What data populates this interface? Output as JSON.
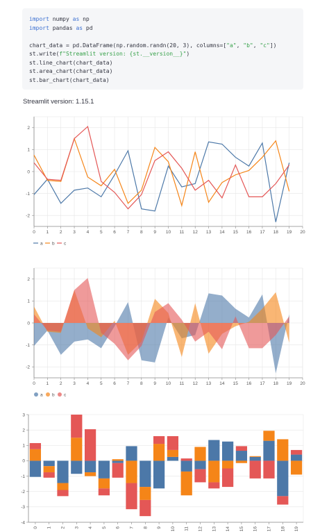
{
  "code": {
    "lines": [
      [
        {
          "t": "import",
          "c": "kw"
        },
        {
          "t": " numpy ",
          "c": ""
        },
        {
          "t": "as",
          "c": "kw"
        },
        {
          "t": " np",
          "c": ""
        }
      ],
      [
        {
          "t": "import",
          "c": "kw"
        },
        {
          "t": " pandas ",
          "c": ""
        },
        {
          "t": "as",
          "c": "kw"
        },
        {
          "t": " pd",
          "c": ""
        }
      ],
      [],
      [
        {
          "t": "chart_data = pd.DataFrame(np.random.randn(20, 3), columns=[",
          "c": ""
        },
        {
          "t": "\"a\"",
          "c": "str"
        },
        {
          "t": ", ",
          "c": ""
        },
        {
          "t": "\"b\"",
          "c": "str"
        },
        {
          "t": ", ",
          "c": ""
        },
        {
          "t": "\"c\"",
          "c": "str"
        },
        {
          "t": "])",
          "c": ""
        }
      ],
      [
        {
          "t": "st.write(",
          "c": ""
        },
        {
          "t": "f\"Streamlit version: {st.__version__}\"",
          "c": "str"
        },
        {
          "t": ")",
          "c": ""
        }
      ],
      [
        {
          "t": "st.line_chart(chart_data)",
          "c": ""
        }
      ],
      [
        {
          "t": "st.area_chart(chart_data)",
          "c": ""
        }
      ],
      [
        {
          "t": "st.bar_chart(chart_data)",
          "c": ""
        }
      ]
    ]
  },
  "version_text": "Streamlit version: 1.15.1",
  "colors": {
    "a": "#4c78a8",
    "b": "#f58518",
    "c": "#e45756",
    "grid": "#e6e6e6",
    "axis": "#888888"
  },
  "chart_data": [
    {
      "type": "line",
      "x": [
        0,
        1,
        2,
        3,
        4,
        5,
        6,
        7,
        8,
        9,
        10,
        11,
        12,
        13,
        14,
        15,
        16,
        17,
        18,
        19
      ],
      "xlim": [
        0,
        20
      ],
      "ylim": [
        -2.5,
        2.5
      ],
      "yticks": [
        -2,
        -1,
        0,
        1,
        2
      ],
      "xticks": [
        0,
        1,
        2,
        3,
        4,
        5,
        6,
        7,
        8,
        9,
        10,
        11,
        12,
        13,
        14,
        15,
        16,
        17,
        18,
        19,
        20
      ],
      "legend": "bottom-left",
      "series": [
        {
          "name": "a",
          "values": [
            -1.05,
            -0.35,
            -1.45,
            -0.85,
            -0.75,
            -1.15,
            -0.15,
            0.95,
            -1.7,
            -1.8,
            0.25,
            -0.7,
            -0.55,
            1.35,
            1.25,
            0.65,
            0.25,
            1.3,
            -2.3,
            0.4
          ]
        },
        {
          "name": "b",
          "values": [
            0.75,
            -0.4,
            -0.45,
            1.5,
            -0.25,
            -0.65,
            0.1,
            -1.45,
            -0.85,
            1.1,
            0.45,
            -1.55,
            0.9,
            -1.4,
            -0.5,
            -0.15,
            0.05,
            0.65,
            1.4,
            -0.9
          ]
        },
        {
          "name": "c",
          "values": [
            0.4,
            -0.35,
            -0.4,
            1.5,
            2.05,
            -0.45,
            -0.95,
            -1.7,
            -1.05,
            0.5,
            0.9,
            0.15,
            -0.85,
            -0.4,
            -1.2,
            0.3,
            -1.15,
            -1.15,
            -0.55,
            0.3
          ]
        }
      ]
    },
    {
      "type": "area",
      "x": [
        0,
        1,
        2,
        3,
        4,
        5,
        6,
        7,
        8,
        9,
        10,
        11,
        12,
        13,
        14,
        15,
        16,
        17,
        18,
        19
      ],
      "xlim": [
        0,
        20
      ],
      "ylim": [
        -2.5,
        2.5
      ],
      "yticks": [
        -2,
        -1,
        0,
        1,
        2
      ],
      "xticks": [
        0,
        1,
        2,
        3,
        4,
        5,
        6,
        7,
        8,
        9,
        10,
        11,
        12,
        13,
        14,
        15,
        16,
        17,
        18,
        19,
        20
      ],
      "legend": "bottom-left",
      "series": [
        {
          "name": "a",
          "values": [
            -1.05,
            -0.35,
            -1.45,
            -0.85,
            -0.75,
            -1.15,
            -0.15,
            0.95,
            -1.7,
            -1.8,
            0.25,
            -0.7,
            -0.55,
            1.35,
            1.25,
            0.65,
            0.25,
            1.3,
            -2.3,
            0.4
          ]
        },
        {
          "name": "b",
          "values": [
            0.75,
            -0.4,
            -0.45,
            1.5,
            -0.25,
            -0.65,
            0.1,
            -1.45,
            -0.85,
            1.1,
            0.45,
            -1.55,
            0.9,
            -1.4,
            -0.5,
            -0.15,
            0.05,
            0.65,
            1.4,
            -0.9
          ]
        },
        {
          "name": "c",
          "values": [
            0.4,
            -0.35,
            -0.4,
            1.5,
            2.05,
            -0.45,
            -0.95,
            -1.7,
            -1.05,
            0.5,
            0.9,
            0.15,
            -0.85,
            -0.4,
            -1.2,
            0.3,
            -1.15,
            -1.15,
            -0.55,
            0.3
          ]
        }
      ]
    },
    {
      "type": "bar",
      "stacked": true,
      "categories": [
        "0",
        "1",
        "2",
        "3",
        "4",
        "5",
        "6",
        "7",
        "8",
        "9",
        "10",
        "11",
        "12",
        "13",
        "14",
        "15",
        "16",
        "17",
        "18",
        "19"
      ],
      "ylim": [
        -4,
        3
      ],
      "yticks": [
        -4,
        -3,
        -2,
        -1,
        0,
        1,
        2,
        3
      ],
      "series": [
        {
          "name": "a",
          "values": [
            -1.05,
            -0.35,
            -1.45,
            -0.85,
            -0.75,
            -1.15,
            -0.15,
            0.95,
            -1.7,
            -1.8,
            0.25,
            -0.7,
            -0.55,
            1.35,
            1.25,
            0.65,
            0.25,
            1.3,
            -2.3,
            0.4
          ]
        },
        {
          "name": "b",
          "values": [
            0.75,
            -0.4,
            -0.45,
            1.5,
            -0.25,
            -0.65,
            0.1,
            -1.45,
            -0.85,
            1.1,
            0.45,
            -1.55,
            0.9,
            -1.4,
            -0.5,
            -0.15,
            0.05,
            0.65,
            1.4,
            -0.9
          ]
        },
        {
          "name": "c",
          "values": [
            0.4,
            -0.35,
            -0.4,
            1.5,
            2.05,
            -0.45,
            -0.95,
            -1.7,
            -1.05,
            0.5,
            0.9,
            0.15,
            -0.85,
            -0.4,
            -1.2,
            0.3,
            -1.15,
            -1.15,
            -0.55,
            0.3
          ]
        }
      ]
    }
  ]
}
